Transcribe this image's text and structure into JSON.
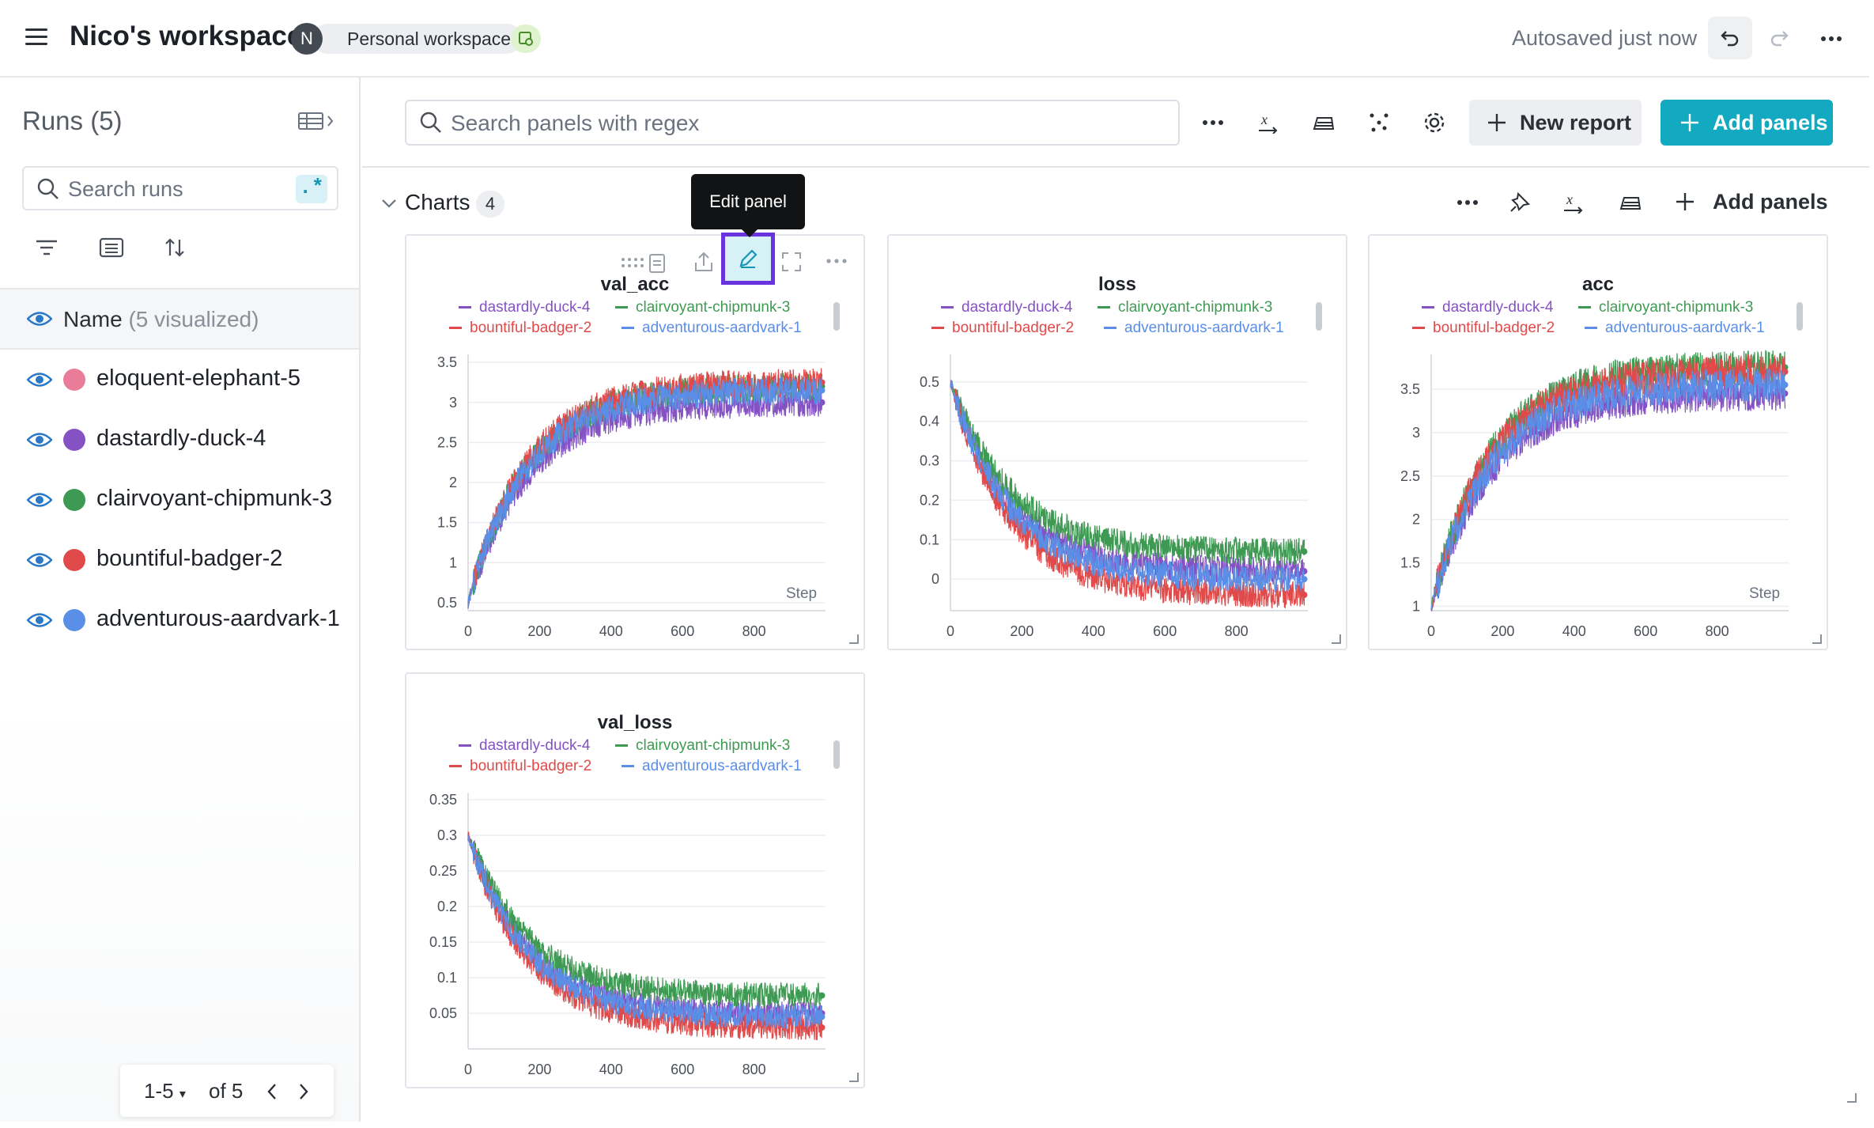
{
  "topbar": {
    "workspace_title": "Nico's workspace",
    "avatar_initial": "N",
    "workspace_type": "Personal workspace",
    "autosave_status": "Autosaved just now"
  },
  "sidebar": {
    "runs_title": "Runs (5)",
    "search_placeholder": "Search runs",
    "regex_label": ".*",
    "name_header": "Name",
    "name_header_sub": "(5 visualized)",
    "runs": [
      {
        "name": "eloquent-elephant-5",
        "color": "#e97c98"
      },
      {
        "name": "dastardly-duck-4",
        "color": "#8552c4"
      },
      {
        "name": "clairvoyant-chipmunk-3",
        "color": "#3e9a52"
      },
      {
        "name": "bountiful-badger-2",
        "color": "#e04a4a"
      },
      {
        "name": "adventurous-aardvark-1",
        "color": "#5b8ee6"
      }
    ],
    "pager": {
      "range": "1-5",
      "of": "of 5"
    }
  },
  "toolbar": {
    "search_placeholder": "Search panels with regex",
    "new_report": "New report",
    "add_panels": "Add panels"
  },
  "section": {
    "title": "Charts",
    "count": "4",
    "add_panels": "Add panels"
  },
  "tooltip": "Edit panel",
  "colors": {
    "accent": "#13a9c0",
    "highlight": "#6a33e0",
    "duck": "#8552c4",
    "chipmunk": "#3e9a52",
    "badger": "#e04a4a",
    "aardvark": "#5b8ee6"
  },
  "legend": {
    "row1": [
      "dastardly-duck-4",
      "clairvoyant-chipmunk-3"
    ],
    "row2": [
      "bountiful-badger-2",
      "adventurous-aardvark-1"
    ]
  },
  "chart_data": [
    {
      "type": "line",
      "title": "val_acc",
      "xlabel": "Step",
      "x_ticks": [
        "0",
        "200",
        "400",
        "600",
        "800"
      ],
      "y_ticks": [
        "0.5",
        "1",
        "1.5",
        "2",
        "2.5",
        "3",
        "3.5"
      ],
      "xlim": [
        0,
        1000
      ],
      "ylim": [
        0.4,
        3.6
      ],
      "series": [
        {
          "name": "dastardly-duck-4",
          "start": 0.5,
          "end": 3.0,
          "noise": 0.18
        },
        {
          "name": "clairvoyant-chipmunk-3",
          "start": 0.5,
          "end": 3.2,
          "noise": 0.18
        },
        {
          "name": "bountiful-badger-2",
          "start": 0.5,
          "end": 3.25,
          "noise": 0.18
        },
        {
          "name": "adventurous-aardvark-1",
          "start": 0.5,
          "end": 3.15,
          "noise": 0.18
        }
      ]
    },
    {
      "type": "line",
      "title": "loss",
      "xlabel": "",
      "x_ticks": [
        "0",
        "200",
        "400",
        "600",
        "800"
      ],
      "y_ticks": [
        "0",
        "0.1",
        "0.2",
        "0.3",
        "0.4",
        "0.5"
      ],
      "xlim": [
        0,
        1000
      ],
      "ylim": [
        -0.08,
        0.57
      ],
      "series": [
        {
          "name": "dastardly-duck-4",
          "start": 0.5,
          "end": 0.02,
          "noise": 0.035
        },
        {
          "name": "clairvoyant-chipmunk-3",
          "start": 0.5,
          "end": 0.07,
          "noise": 0.035
        },
        {
          "name": "bountiful-badger-2",
          "start": 0.5,
          "end": -0.04,
          "noise": 0.035
        },
        {
          "name": "adventurous-aardvark-1",
          "start": 0.5,
          "end": 0.0,
          "noise": 0.035
        }
      ]
    },
    {
      "type": "line",
      "title": "acc",
      "xlabel": "Step",
      "x_ticks": [
        "0",
        "200",
        "400",
        "600",
        "800"
      ],
      "y_ticks": [
        "1",
        "1.5",
        "2",
        "2.5",
        "3",
        "3.5"
      ],
      "xlim": [
        0,
        1000
      ],
      "ylim": [
        0.95,
        3.9
      ],
      "series": [
        {
          "name": "dastardly-duck-4",
          "start": 1.0,
          "end": 3.45,
          "noise": 0.2
        },
        {
          "name": "clairvoyant-chipmunk-3",
          "start": 1.0,
          "end": 3.75,
          "noise": 0.2
        },
        {
          "name": "bountiful-badger-2",
          "start": 1.0,
          "end": 3.7,
          "noise": 0.2
        },
        {
          "name": "adventurous-aardvark-1",
          "start": 1.0,
          "end": 3.55,
          "noise": 0.2
        }
      ]
    },
    {
      "type": "line",
      "title": "val_loss",
      "xlabel": "",
      "x_ticks": [
        "0",
        "200",
        "400",
        "600",
        "800"
      ],
      "y_ticks": [
        "0.05",
        "0.1",
        "0.15",
        "0.2",
        "0.25",
        "0.3",
        "0.35"
      ],
      "xlim": [
        0,
        1000
      ],
      "ylim": [
        0.0,
        0.36
      ],
      "series": [
        {
          "name": "dastardly-duck-4",
          "start": 0.3,
          "end": 0.05,
          "noise": 0.018
        },
        {
          "name": "clairvoyant-chipmunk-3",
          "start": 0.3,
          "end": 0.075,
          "noise": 0.018
        },
        {
          "name": "bountiful-badger-2",
          "start": 0.3,
          "end": 0.03,
          "noise": 0.018
        },
        {
          "name": "adventurous-aardvark-1",
          "start": 0.3,
          "end": 0.045,
          "noise": 0.018
        }
      ]
    }
  ]
}
